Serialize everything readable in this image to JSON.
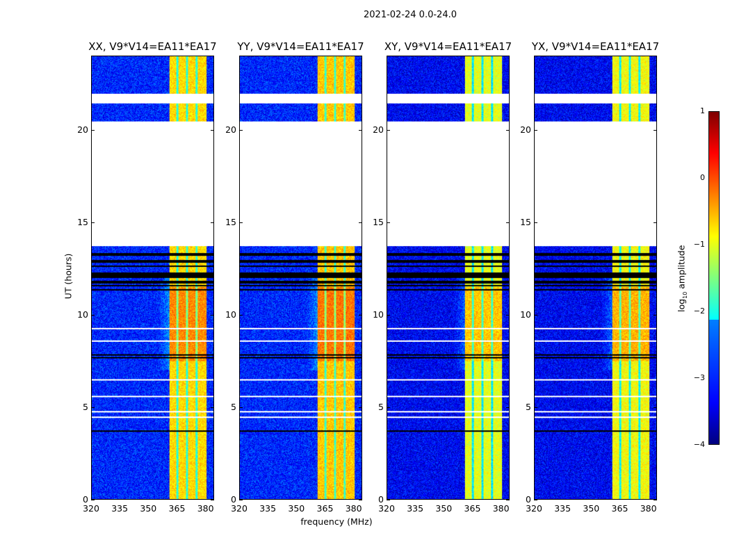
{
  "chart_data": {
    "type": "heatmap",
    "title": "2021-02-24 0.0-24.0",
    "xlabel": "frequency (MHz)",
    "ylabel": "UT (hours)",
    "xlim": [
      320,
      384.5
    ],
    "ylim": [
      0,
      24
    ],
    "xticks": [
      "320",
      "335",
      "350",
      "365",
      "380"
    ],
    "xtick_values": [
      320,
      335,
      350,
      365,
      380
    ],
    "yticks": [
      "0",
      "5",
      "10",
      "15",
      "20"
    ],
    "ytick_values": [
      0,
      5,
      10,
      15,
      20
    ],
    "panels": [
      {
        "title": "XX, V9*V14=EA11*EA17",
        "band_level": -0.7
      },
      {
        "title": "YY, V9*V14=EA11*EA17",
        "band_level": -0.6
      },
      {
        "title": "XY, V9*V14=EA11*EA17",
        "band_level": -1.0
      },
      {
        "title": "YX, V9*V14=EA11*EA17",
        "band_level": -0.9
      }
    ],
    "bright_band_MHz": [
      361,
      380.5
    ],
    "background_level": -3.2,
    "flagged_UT_ranges": [
      [
        13.75,
        20.5
      ],
      [
        21.45,
        22.0
      ]
    ],
    "colorbar": {
      "label": "log10 amplitude",
      "label_main": "log",
      "label_sub": "10",
      "label_rest": " amplitude",
      "colormap": "jet",
      "range": [
        -4,
        1
      ],
      "ticks": [
        "1",
        "0",
        "−1",
        "−2",
        "−3",
        "−4"
      ],
      "tick_values": [
        1,
        0,
        -1,
        -2,
        -3,
        -4
      ]
    }
  }
}
